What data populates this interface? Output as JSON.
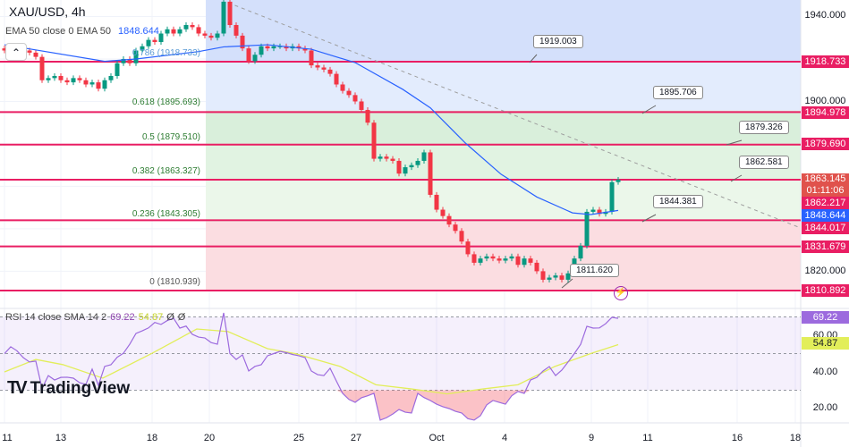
{
  "header": {
    "symbol_title": "XAU/USD, 4h",
    "ema_label": "EMA 50 close 0 EMA 50",
    "ema_value": "1848.644",
    "collapse_icon": "chevron-up-icon"
  },
  "rsi_header": {
    "label": "RSI 14 close SMA 14 2",
    "rsi_value": "69.22",
    "sma_value": "54.87",
    "extra1": "Ø",
    "extra2": "Ø"
  },
  "logo": {
    "text": "TradingView"
  },
  "colors": {
    "up": "#089981",
    "down": "#f23645",
    "ema": "#2962ff",
    "level_line": "#e91e63",
    "rsi": "#9c6ade",
    "rsi_sma": "#e2ee5a",
    "trendline": "#9e9e9e"
  },
  "fib_labels": [
    {
      "text": "0.786 (1918.733)",
      "price": 1918.733
    },
    {
      "text": "0.618 (1895.693)",
      "price": 1895.693
    },
    {
      "text": "0.5 (1879.510)",
      "price": 1879.51
    },
    {
      "text": "0.382 (1863.327)",
      "price": 1863.327
    },
    {
      "text": "0.236 (1843.305)",
      "price": 1843.305
    },
    {
      "text": "0 (1810.939)",
      "price": 1810.939
    }
  ],
  "callouts": [
    "1919.003",
    "1895.706",
    "1879.326",
    "1862.581",
    "1844.381",
    "1811.620"
  ],
  "price_axis": [
    {
      "text": "1940.000",
      "style": "plain"
    },
    {
      "text": "1918.733",
      "style": "red"
    },
    {
      "text": "1900.000",
      "style": "plain"
    },
    {
      "text": "1894.978",
      "style": "red"
    },
    {
      "text": "1879.690",
      "style": "red"
    },
    {
      "text": "1863.145",
      "style": "cur",
      "countdown": "01:11:06"
    },
    {
      "text": "1862.217",
      "style": "red"
    },
    {
      "text": "1848.644",
      "style": "blue"
    },
    {
      "text": "1844.017",
      "style": "red"
    },
    {
      "text": "1831.679",
      "style": "red"
    },
    {
      "text": "1820.000",
      "style": "plain"
    },
    {
      "text": "1810.892",
      "style": "red"
    }
  ],
  "rsi_axis": [
    {
      "text": "69.22",
      "style": "purple"
    },
    {
      "text": "60.00",
      "style": "plain"
    },
    {
      "text": "54.87",
      "style": "yellow"
    },
    {
      "text": "40.00",
      "style": "plain"
    },
    {
      "text": "20.00",
      "style": "plain"
    }
  ],
  "time_axis": [
    "11",
    "13",
    "18",
    "20",
    "25",
    "27",
    "Oct",
    "4",
    "9",
    "11",
    "16",
    "18"
  ],
  "chart_data": {
    "type": "candlestick",
    "title": "XAU/USD, 4h",
    "ylim": [
      1805,
      1948
    ],
    "horizontal_levels": [
      1918.733,
      1894.978,
      1879.69,
      1863.145,
      1844.017,
      1831.679,
      1810.892
    ],
    "fib_levels": [
      1918.733,
      1895.693,
      1879.51,
      1863.327,
      1843.305,
      1810.939
    ],
    "close": [
      1924,
      1926,
      1925,
      1924,
      1923,
      1921,
      1910,
      1911,
      1912,
      1910,
      1909,
      1911,
      1910,
      1908,
      1909,
      1906,
      1910,
      1912,
      1918,
      1920,
      1918,
      1924,
      1926,
      1929,
      1928,
      1932,
      1934,
      1932,
      1934,
      1936,
      1935,
      1932,
      1931,
      1930,
      1932,
      1947,
      1936,
      1931,
      1925,
      1919,
      1922,
      1926,
      1925,
      1926,
      1926,
      1925,
      1926,
      1925,
      1924,
      1917,
      1916,
      1915,
      1913,
      1908,
      1905,
      1903,
      1900,
      1896,
      1890,
      1873,
      1874,
      1873,
      1872,
      1866,
      1869,
      1870,
      1872,
      1876,
      1856,
      1849,
      1846,
      1842,
      1839,
      1834,
      1828,
      1824,
      1826,
      1827,
      1826,
      1825,
      1826,
      1827,
      1823,
      1826,
      1824,
      1820,
      1816,
      1817,
      1818,
      1816,
      1819,
      1826,
      1832,
      1848,
      1849,
      1847,
      1848,
      1862,
      1863.145
    ],
    "ema50": [
      [
        0,
        1926.7
      ],
      [
        16,
        1918.9
      ],
      [
        21,
        1920
      ],
      [
        31,
        1923.5
      ],
      [
        35,
        1925.7
      ],
      [
        42,
        1926.7
      ],
      [
        49,
        1924.6
      ],
      [
        56,
        1918.3
      ],
      [
        63.6,
        1905.7
      ],
      [
        68,
        1897
      ],
      [
        73.6,
        1880.4
      ],
      [
        79.3,
        1865.7
      ],
      [
        85,
        1855
      ],
      [
        90.7,
        1847.5
      ],
      [
        93.6,
        1846.7
      ],
      [
        98,
        1848.644
      ]
    ],
    "rsi": [
      50,
      53.7,
      51.5,
      47.8,
      45.4,
      45.9,
      31,
      38,
      35.6,
      37,
      37.1,
      36.6,
      34.1,
      33.2,
      41.5,
      32.7,
      43,
      43.9,
      48,
      50.2,
      55.1,
      61,
      62.4,
      64,
      67,
      65.9,
      68,
      69.3,
      63.9,
      65,
      60.5,
      59,
      58.5,
      56,
      55.1,
      72.2,
      50,
      46.8,
      49.3,
      40.5,
      43,
      43.9,
      48.8,
      50,
      51.2,
      50.5,
      49.5,
      48.8,
      47.8,
      40.5,
      38.5,
      38,
      42,
      35,
      28.3,
      25,
      23.4,
      25.9,
      27,
      28.3,
      13.7,
      15,
      17,
      19.5,
      18,
      17.6,
      28.3,
      26,
      24.4,
      22.4,
      21,
      20,
      18.5,
      17.6,
      14.5,
      13.7,
      16.1,
      22,
      24.4,
      23.4,
      22.4,
      27,
      29.3,
      28.3,
      35.6,
      37,
      40.5,
      42.9,
      38,
      41,
      45.4,
      50,
      55,
      64.9,
      63.9,
      64,
      66.3,
      69.8,
      69.22
    ],
    "rsi_sma": [
      [
        0,
        40
      ],
      [
        5,
        46.8
      ],
      [
        9.3,
        44
      ],
      [
        15.7,
        36.6
      ],
      [
        23.6,
        50.2
      ],
      [
        30.7,
        63.4
      ],
      [
        35.7,
        62
      ],
      [
        42,
        52.7
      ],
      [
        46.4,
        50
      ],
      [
        53.6,
        43
      ],
      [
        59.3,
        33
      ],
      [
        65,
        30.7
      ],
      [
        70.7,
        28
      ],
      [
        76.4,
        30.7
      ],
      [
        82,
        33
      ],
      [
        87.9,
        43
      ],
      [
        93.6,
        50
      ],
      [
        98,
        54.87
      ]
    ],
    "rsi_levels": [
      70,
      50,
      30
    ]
  }
}
